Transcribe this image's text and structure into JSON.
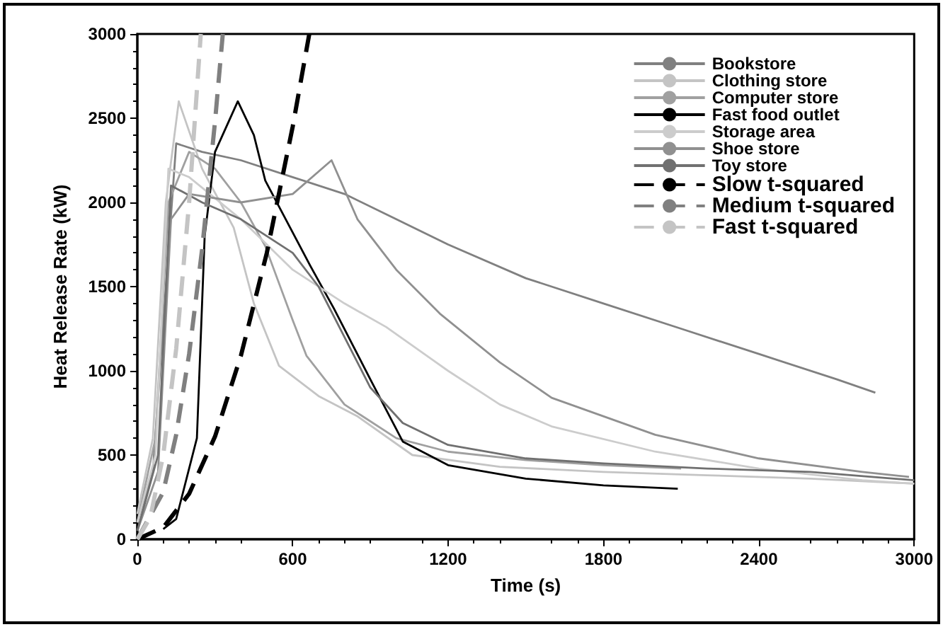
{
  "chart_data": {
    "type": "line",
    "xlabel": "Time (s)",
    "ylabel": "Heat Release Rate (kW)",
    "xlim": [
      0,
      3000
    ],
    "xticks": [
      0,
      600,
      1200,
      1800,
      2400,
      3000
    ],
    "ylim": [
      0,
      3000
    ],
    "yticks": [
      0,
      500,
      1000,
      1500,
      2000,
      2500,
      3000
    ],
    "grid": false,
    "legend": "top right",
    "marker": "none",
    "series": [
      {
        "name": "Bookstore",
        "color": "#808080",
        "line_style": "solid",
        "x": [
          0,
          60,
          110,
          150,
          250,
          400,
          600,
          800,
          1000,
          1200,
          1500,
          1800,
          2100,
          2400,
          2700,
          2850
        ],
        "values": [
          100,
          400,
          1500,
          2350,
          2300,
          2250,
          2150,
          2050,
          1900,
          1750,
          1550,
          1400,
          1250,
          1100,
          950,
          870
        ]
      },
      {
        "name": "Clothing store",
        "color": "#c4c4c4",
        "line_style": "solid",
        "x": [
          0,
          60,
          110,
          160,
          250,
          372,
          450,
          547,
          700,
          850,
          1062,
          1400,
          1800,
          2200,
          2600,
          3000
        ],
        "values": [
          150,
          600,
          2000,
          2600,
          2200,
          1850,
          1400,
          1030,
          850,
          730,
          500,
          430,
          400,
          380,
          360,
          330
        ]
      },
      {
        "name": "Computer store",
        "color": "#a0a0a0",
        "line_style": "solid",
        "x": [
          0,
          70,
          120,
          200,
          300,
          400,
          494,
          600,
          653,
          800,
          1000,
          1200,
          1500,
          1800,
          2100
        ],
        "values": [
          100,
          600,
          2000,
          2300,
          2200,
          2000,
          1740,
          1300,
          1090,
          800,
          600,
          520,
          470,
          440,
          420
        ]
      },
      {
        "name": "Fast food outlet",
        "color": "#000000",
        "line_style": "solid",
        "x": [
          100,
          150,
          230,
          260,
          300,
          388,
          450,
          494,
          669,
          759,
          903,
          1025,
          1200,
          1500,
          1800,
          2087
        ],
        "values": [
          60,
          120,
          600,
          1800,
          2300,
          2600,
          2400,
          2130,
          1620,
          1370,
          940,
          580,
          440,
          360,
          320,
          300
        ]
      },
      {
        "name": "Storage area",
        "color": "#cccccc",
        "line_style": "solid",
        "x": [
          0,
          70,
          120,
          200,
          400,
          600,
          800,
          961,
          1200,
          1400,
          1600,
          2000,
          2400,
          2800,
          3000
        ],
        "values": [
          100,
          500,
          2200,
          2150,
          1900,
          1600,
          1400,
          1260,
          1000,
          800,
          670,
          520,
          420,
          350,
          330
        ]
      },
      {
        "name": "Shoe store",
        "color": "#909090",
        "line_style": "solid",
        "x": [
          0,
          80,
          130,
          200,
          400,
          600,
          750,
          850,
          1000,
          1168,
          1400,
          1600,
          2000,
          2400,
          2800,
          2980
        ],
        "values": [
          50,
          400,
          1900,
          2050,
          2000,
          2050,
          2250,
          1900,
          1600,
          1340,
          1050,
          840,
          620,
          480,
          400,
          370
        ]
      },
      {
        "name": "Toy store",
        "color": "#707070",
        "line_style": "solid",
        "x": [
          0,
          80,
          130,
          250,
          400,
          500,
          600,
          700,
          800,
          900,
          1025,
          1200,
          1500,
          1800,
          2200,
          2600,
          3000
        ],
        "values": [
          50,
          500,
          2100,
          2000,
          1900,
          1800,
          1700,
          1500,
          1200,
          900,
          690,
          560,
          480,
          450,
          420,
          400,
          350
        ]
      },
      {
        "name": "Slow t-squared",
        "color": "#000000",
        "line_style": "dashed",
        "x": [
          0,
          100,
          200,
          300,
          400,
          500,
          600,
          664
        ],
        "values": [
          0,
          70,
          270,
          610,
          1090,
          1700,
          2450,
          3000
        ]
      },
      {
        "name": "Medium t-squared",
        "color": "#808080",
        "line_style": "dashed",
        "x": [
          0,
          100,
          150,
          200,
          250,
          300,
          330
        ],
        "values": [
          0,
          280,
          620,
          1100,
          1720,
          2480,
          3000
        ]
      },
      {
        "name": "Fast t-squared",
        "color": "#c4c4c4",
        "line_style": "dashed",
        "x": [
          0,
          50,
          100,
          150,
          200,
          245
        ],
        "values": [
          0,
          130,
          500,
          1130,
          2000,
          3000
        ]
      }
    ]
  }
}
